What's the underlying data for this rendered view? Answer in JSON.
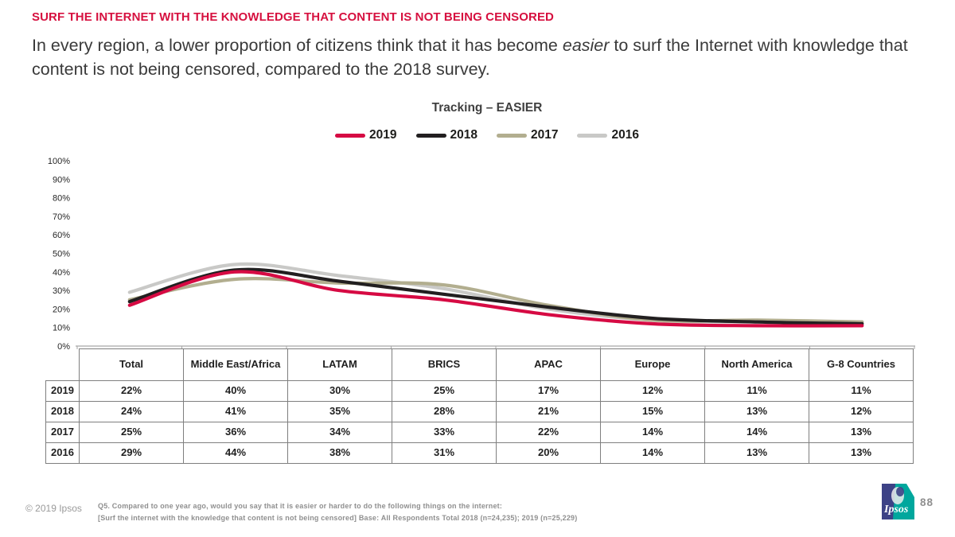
{
  "slide": {
    "title": "SURF THE INTERNET WITH THE KNOWLEDGE THAT CONTENT IS NOT BEING CENSORED",
    "subtitle": {
      "before_italic": "In every region, a lower proportion of citizens think that it has become ",
      "italic_word": "easier",
      "after_italic": " to surf the Internet with knowledge that content is not being censored, compared to the 2018 survey."
    }
  },
  "chart_data": {
    "type": "line",
    "title": "Tracking – EASIER",
    "categories": [
      "Total",
      "Middle East/Africa",
      "LATAM",
      "BRICS",
      "APAC",
      "Europe",
      "North America",
      "G-8 Countries"
    ],
    "series": [
      {
        "name": "2019",
        "color": "#d60a43",
        "values": [
          22,
          40,
          30,
          25,
          17,
          12,
          11,
          11
        ]
      },
      {
        "name": "2018",
        "color": "#221f20",
        "values": [
          24,
          41,
          35,
          28,
          21,
          15,
          13,
          12
        ]
      },
      {
        "name": "2017",
        "color": "#b2ae8f",
        "values": [
          25,
          36,
          34,
          33,
          22,
          14,
          14,
          13
        ]
      },
      {
        "name": "2016",
        "color": "#c9c9c7",
        "values": [
          29,
          44,
          38,
          31,
          20,
          14,
          13,
          13
        ]
      }
    ],
    "ylim": [
      0,
      100
    ],
    "ytick_step": 10,
    "yticks": [
      "0%",
      "10%",
      "20%",
      "30%",
      "40%",
      "50%",
      "60%",
      "70%",
      "80%",
      "90%",
      "100%"
    ],
    "grid": false,
    "legend_position": "top"
  },
  "table": {
    "columns": [
      "Total",
      "Middle East/Africa",
      "LATAM",
      "BRICS",
      "APAC",
      "Europe",
      "North America",
      "G-8 Countries"
    ],
    "rows": [
      {
        "year": "2019",
        "values": [
          "22%",
          "40%",
          "30%",
          "25%",
          "17%",
          "12%",
          "11%",
          "11%"
        ]
      },
      {
        "year": "2018",
        "values": [
          "24%",
          "41%",
          "35%",
          "28%",
          "21%",
          "15%",
          "13%",
          "12%"
        ]
      },
      {
        "year": "2017",
        "values": [
          "25%",
          "36%",
          "34%",
          "33%",
          "22%",
          "14%",
          "14%",
          "13%"
        ]
      },
      {
        "year": "2016",
        "values": [
          "29%",
          "44%",
          "38%",
          "31%",
          "20%",
          "14%",
          "13%",
          "13%"
        ]
      }
    ]
  },
  "footer": {
    "copyright": "© 2019 Ipsos",
    "footnote_line1": "Q5. Compared to one year ago, would you say that it is easier or harder to do the following things on the internet:",
    "footnote_line2": "[Surf the internet with the knowledge that content is not being censored] Base: All Respondents Total 2018 (n=24,235); 2019 (n=25,229)",
    "logo_text": "Ipsos",
    "page_number": "88"
  }
}
